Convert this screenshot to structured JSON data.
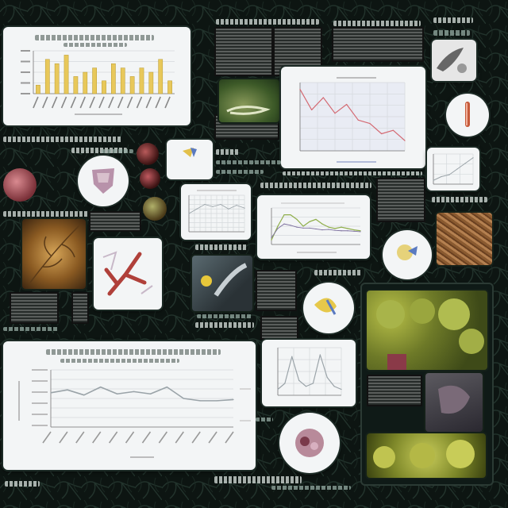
{
  "canvas_title": "",
  "colors": {
    "background": "#0d1512",
    "card": "#f3f5f6",
    "bar_fill": "#e8c85a",
    "line_red": "#d46a73",
    "line_green": "#8fae4a",
    "line_purple": "#7c6f9e",
    "line_gray": "#9aa3a8"
  },
  "icons": [
    "tissue-slide-icon",
    "vessel-slide-icon",
    "leaf-cell-icon",
    "flower-cell-icon",
    "beaker-icon"
  ],
  "chart_data": [
    {
      "type": "bar",
      "title": "",
      "categories": [
        "",
        "",
        "",
        "",
        "",
        "",
        "",
        "",
        "",
        "",
        "",
        "",
        "",
        "",
        ""
      ],
      "values": [
        2,
        8,
        7,
        9,
        4,
        5,
        6,
        3,
        7,
        6,
        4,
        6,
        5,
        8,
        3
      ],
      "ylim": [
        0,
        10
      ]
    },
    {
      "type": "line",
      "title": "",
      "x": [
        1,
        2,
        3,
        4,
        5,
        6,
        7,
        8,
        9,
        10
      ],
      "series": [
        {
          "values": [
            9,
            6,
            7.8,
            5.5,
            6.8,
            4.5,
            4,
            2.5,
            3,
            1.5
          ]
        }
      ],
      "ylim": [
        0,
        10
      ]
    },
    {
      "type": "line",
      "title": "",
      "x": [
        1,
        2,
        3,
        4,
        5,
        6,
        7,
        8,
        9,
        10,
        11,
        12,
        13,
        14,
        15
      ],
      "series": [
        {
          "values": [
            1,
            4,
            6.5,
            6.5,
            5.5,
            4,
            5,
            5.5,
            4.5,
            3.8,
            3.5,
            3.8,
            3.5,
            3.2,
            3
          ]
        },
        {
          "values": [
            1.5,
            3.5,
            4.5,
            4.2,
            3.8,
            3.6,
            3.6,
            3.4,
            3.2,
            3.3,
            3.1,
            3.0,
            3.0,
            2.9,
            2.8
          ]
        }
      ],
      "ylim": [
        0,
        8
      ]
    },
    {
      "type": "line",
      "title": "",
      "x": [
        1,
        2,
        3,
        4,
        5,
        6,
        7,
        8,
        9,
        10,
        11,
        12
      ],
      "series": [
        {
          "values": [
            6,
            6.5,
            5.6,
            7,
            5.8,
            6.2,
            5.8,
            7,
            5,
            4.6,
            4.6,
            4.8
          ]
        }
      ],
      "ylim": [
        0,
        10
      ]
    },
    {
      "type": "line",
      "title": "",
      "x": [
        1,
        2,
        3,
        4,
        5,
        6,
        7,
        8,
        9,
        10
      ],
      "series": [
        {
          "values": [
            1,
            2,
            6.5,
            2.5,
            1.5,
            2,
            6.8,
            3,
            1.5,
            1
          ]
        }
      ],
      "ylim": [
        0,
        8
      ]
    },
    {
      "type": "line",
      "title": "",
      "x": [
        1,
        2,
        3,
        4,
        5,
        6
      ],
      "series": [
        {
          "values": [
            1,
            2,
            2.5,
            4,
            5.5,
            7
          ]
        }
      ],
      "ylim": [
        0,
        8
      ]
    },
    {
      "type": "line",
      "title": "",
      "x": [
        1,
        2,
        3,
        4,
        5,
        6,
        7,
        8
      ],
      "series": [
        {
          "values": [
            4,
            5,
            6,
            5.5,
            6,
            5,
            5.8,
            5.2
          ]
        }
      ],
      "ylim": [
        0,
        8
      ]
    }
  ]
}
